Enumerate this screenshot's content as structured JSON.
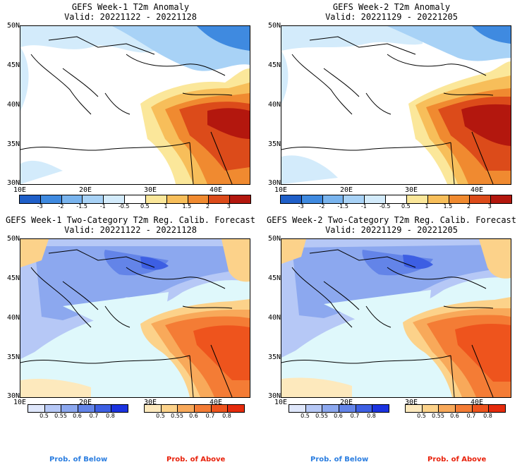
{
  "panels": [
    {
      "title": "GEFS Week-1 T2m Anomaly",
      "valid": "Valid: 20221122 - 20221128",
      "kind": "anomaly"
    },
    {
      "title": "GEFS Week-2 T2m Anomaly",
      "valid": "Valid: 20221129 - 20221205",
      "kind": "anomaly"
    },
    {
      "title": "GEFS Week-1 Two-Category T2m Reg. Calib. Forecast",
      "valid": "Valid: 20221122 - 20221128",
      "kind": "prob"
    },
    {
      "title": "GEFS Week-2 Two-Category T2m Reg. Calib. Forecast",
      "valid": "Valid: 20221129 - 20221205",
      "kind": "prob"
    }
  ],
  "axes": {
    "lat_labels": [
      "50N",
      "45N",
      "40N",
      "35N",
      "30N"
    ],
    "lon_labels": [
      "10E",
      "20E",
      "30E",
      "40E"
    ]
  },
  "anomaly_colorbar": {
    "labels": [
      "-3",
      "-2",
      "-1.5",
      "-1",
      "-0.5",
      "0.5",
      "1",
      "1.5",
      "2",
      "3"
    ],
    "colors": [
      "#1f5fc8",
      "#3f8ae0",
      "#79b4ee",
      "#a8d2f6",
      "#d3ebfb",
      "#ffffff",
      "#fbe79a",
      "#f7be5a",
      "#f08a30",
      "#dc4b1a",
      "#b3170e"
    ]
  },
  "prob_colorbar_below": {
    "labels": [
      "0.5",
      "0.55",
      "0.6",
      "0.7",
      "0.8"
    ],
    "colors": [
      "#dfe7fb",
      "#b6c8f6",
      "#8ca8ef",
      "#6384e8",
      "#3d5fe3",
      "#1b33e0"
    ]
  },
  "prob_colorbar_above": {
    "labels": [
      "0.5",
      "0.55",
      "0.6",
      "0.7",
      "0.8"
    ],
    "colors": [
      "#fde9bd",
      "#fcd28a",
      "#f8a95a",
      "#f47c35",
      "#ee541d",
      "#e52b0c"
    ]
  },
  "legend": {
    "below": "Prob. of Below",
    "above": "Prob. of Above",
    "below_color": "#2a7de0",
    "above_color": "#e8220c"
  },
  "map_colors": {
    "sea_prob": "#dff8fb",
    "land_default": "#ffffff"
  }
}
